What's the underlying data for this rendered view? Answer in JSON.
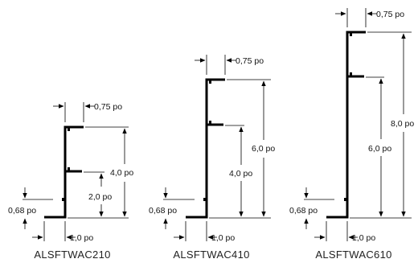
{
  "profiles": [
    {
      "model": "ALSFTWAC210",
      "top_width": "0,75 po",
      "total_height": "4,0 po",
      "step_height": "2,0 po",
      "base_height": "0,68 po",
      "base_width": "1,0 po"
    },
    {
      "model": "ALSFTWAC410",
      "top_width": "0,75 po",
      "total_height": "6,0 po",
      "step_height": "4,0 po",
      "base_height": "0,68 po",
      "base_width": "1,0 po"
    },
    {
      "model": "ALSFTWAC610",
      "top_width": "0,75 po",
      "total_height": "8,0 po",
      "step_height": "6,0 po",
      "base_height": "0,68 po",
      "base_width": "1,0 po"
    }
  ]
}
